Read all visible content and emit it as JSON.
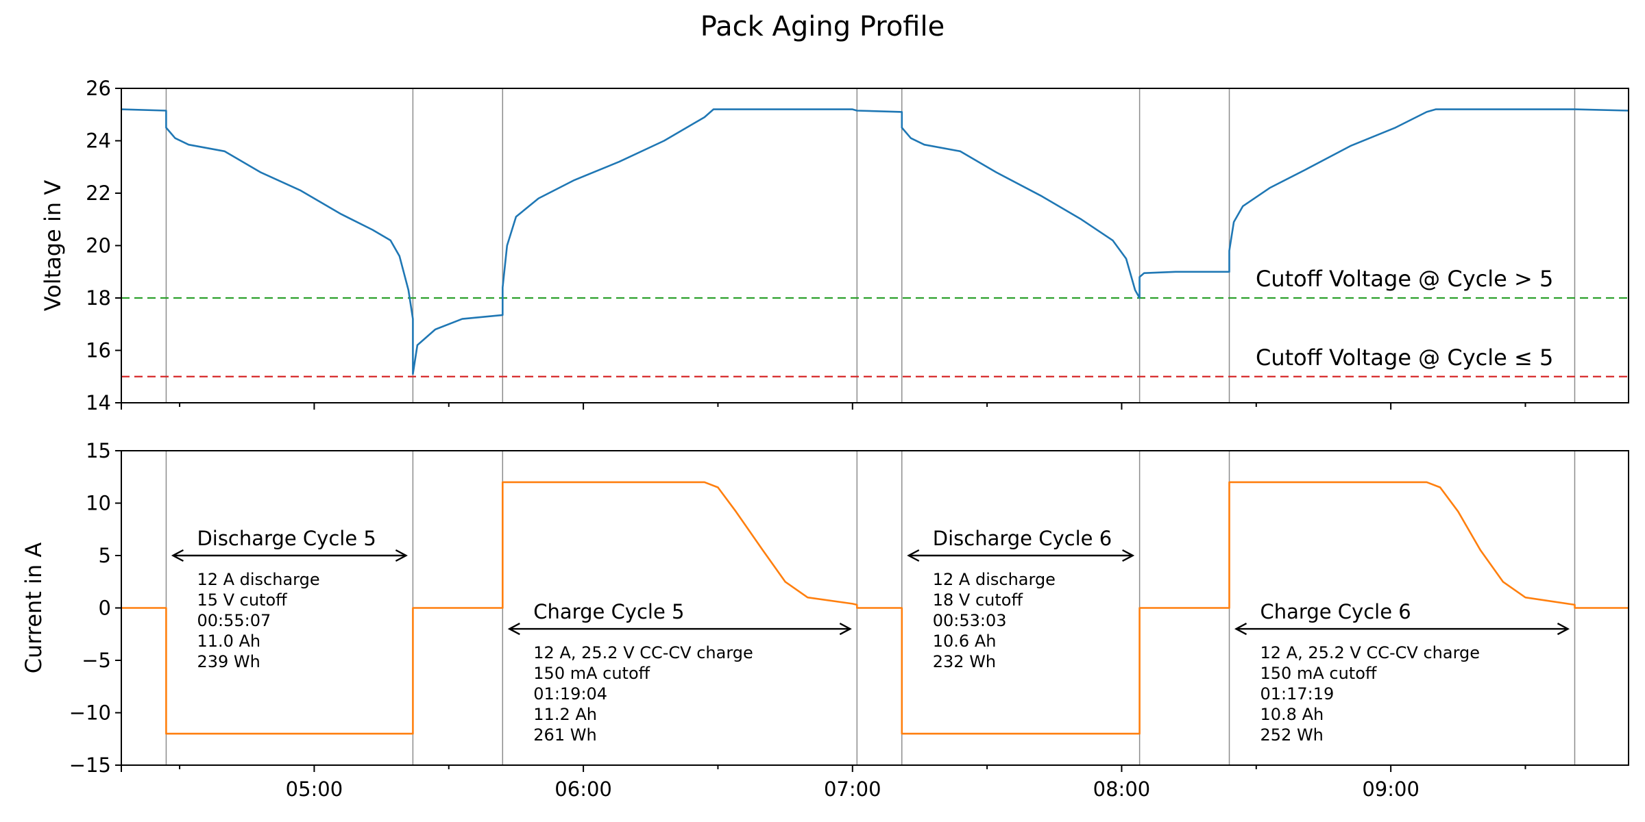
{
  "chart_data": {
    "title": "Pack Aging Profile",
    "x_ticks": [
      "05:00",
      "06:00",
      "07:00",
      "08:00",
      "09:00"
    ],
    "xlim": [
      "04:17",
      "09:53"
    ],
    "events": [
      "04:27",
      "05:22",
      "05:42",
      "07:01",
      "07:11",
      "08:04",
      "08:24",
      "09:41"
    ],
    "panels": [
      {
        "type": "line",
        "ylabel": "Voltage in V",
        "ylim": [
          14,
          26
        ],
        "yticks": [
          14,
          16,
          18,
          20,
          22,
          24,
          26
        ],
        "color": "#1f77b4",
        "series": [
          {
            "x": [
              "04:17",
              "04:27",
              "04:27",
              "04:29",
              "04:32",
              "04:40",
              "04:48",
              "04:57",
              "05:06",
              "05:13",
              "05:17",
              "05:19",
              "05:21",
              "05:22",
              "05:22",
              "05:23",
              "05:27",
              "05:33",
              "05:42",
              "05:42",
              "05:43",
              "05:45",
              "05:50",
              "05:58",
              "06:08",
              "06:18",
              "06:27",
              "06:29",
              "06:31",
              "06:40",
              "06:50",
              "07:00",
              "07:01",
              "07:11",
              "07:11",
              "07:13",
              "07:16",
              "07:24",
              "07:32",
              "07:42",
              "07:51",
              "07:58",
              "08:01",
              "08:03",
              "08:04",
              "08:04",
              "08:05",
              "08:12",
              "08:24",
              "08:24",
              "08:25",
              "08:27",
              "08:33",
              "08:41",
              "08:51",
              "09:01",
              "09:08",
              "09:10",
              "09:20",
              "09:30",
              "09:41",
              "09:53"
            ],
            "y": [
              25.2,
              25.15,
              24.5,
              24.1,
              23.85,
              23.6,
              22.8,
              22.1,
              21.2,
              20.6,
              20.2,
              19.6,
              18.3,
              17.2,
              15.1,
              16.2,
              16.8,
              17.2,
              17.35,
              18.4,
              20.0,
              21.1,
              21.8,
              22.5,
              23.2,
              24.0,
              24.9,
              25.2,
              25.2,
              25.2,
              25.2,
              25.2,
              25.15,
              25.1,
              24.5,
              24.1,
              23.85,
              23.6,
              22.8,
              21.9,
              21.0,
              20.2,
              19.5,
              18.3,
              18.0,
              18.8,
              18.95,
              19.0,
              19.0,
              19.8,
              20.9,
              21.5,
              22.2,
              22.9,
              23.8,
              24.5,
              25.1,
              25.2,
              25.2,
              25.2,
              25.2,
              25.15
            ]
          }
        ],
        "reference_lines": [
          {
            "value": 18,
            "color": "#2ca02c",
            "label": "Cutoff Voltage @ Cycle > 5"
          },
          {
            "value": 15,
            "color": "#d62728",
            "label": "Cutoff Voltage @ Cycle ≤ 5"
          }
        ]
      },
      {
        "type": "line",
        "ylabel": "Current in A",
        "ylim": [
          -15,
          15
        ],
        "yticks": [
          -15,
          -10,
          -5,
          0,
          5,
          10,
          15
        ],
        "yticklabels": [
          "−15",
          "−10",
          "−5",
          "0",
          "5",
          "10",
          "15"
        ],
        "color": "#ff7f0e",
        "series": [
          {
            "x": [
              "04:17",
              "04:27",
              "04:27",
              "05:22",
              "05:22",
              "05:42",
              "05:42",
              "06:27",
              "06:30",
              "06:34",
              "06:40",
              "06:45",
              "06:50",
              "07:00",
              "07:01",
              "07:01",
              "07:11",
              "07:11",
              "08:04",
              "08:04",
              "08:24",
              "08:24",
              "09:08",
              "09:11",
              "09:15",
              "09:20",
              "09:25",
              "09:30",
              "09:41",
              "09:41",
              "09:53"
            ],
            "y": [
              0,
              0,
              -12,
              -12,
              0,
              0,
              12,
              12,
              11.5,
              9.2,
              5.5,
              2.5,
              1.0,
              0.4,
              0.3,
              0,
              0,
              -12,
              -12,
              0,
              0,
              12,
              12,
              11.5,
              9.2,
              5.5,
              2.5,
              1.0,
              0.3,
              0,
              0
            ]
          }
        ],
        "annotations": [
          {
            "label": "Discharge Cycle 5",
            "from": "04:27",
            "to": "05:22",
            "arrow_y": 5,
            "details": [
              "12 A discharge",
              "15 V cutoff",
              "00:55:07",
              "11.0 Ah",
              "239 Wh"
            ]
          },
          {
            "label": "Charge Cycle 5",
            "from": "05:42",
            "to": "07:01",
            "arrow_y": -2,
            "details": [
              "12 A, 25.2 V CC-CV charge",
              "150 mA cutoff",
              "01:19:04",
              "11.2 Ah",
              "261 Wh"
            ]
          },
          {
            "label": "Discharge Cycle 6",
            "from": "07:11",
            "to": "08:04",
            "arrow_y": 5,
            "details": [
              "12 A discharge",
              "18 V cutoff",
              "00:53:03",
              "10.6 Ah",
              "232 Wh"
            ]
          },
          {
            "label": "Charge Cycle 6",
            "from": "08:24",
            "to": "09:41",
            "arrow_y": -2,
            "details": [
              "12 A, 25.2 V CC-CV charge",
              "150 mA cutoff",
              "01:17:19",
              "10.8 Ah",
              "252 Wh"
            ]
          }
        ]
      }
    ]
  }
}
